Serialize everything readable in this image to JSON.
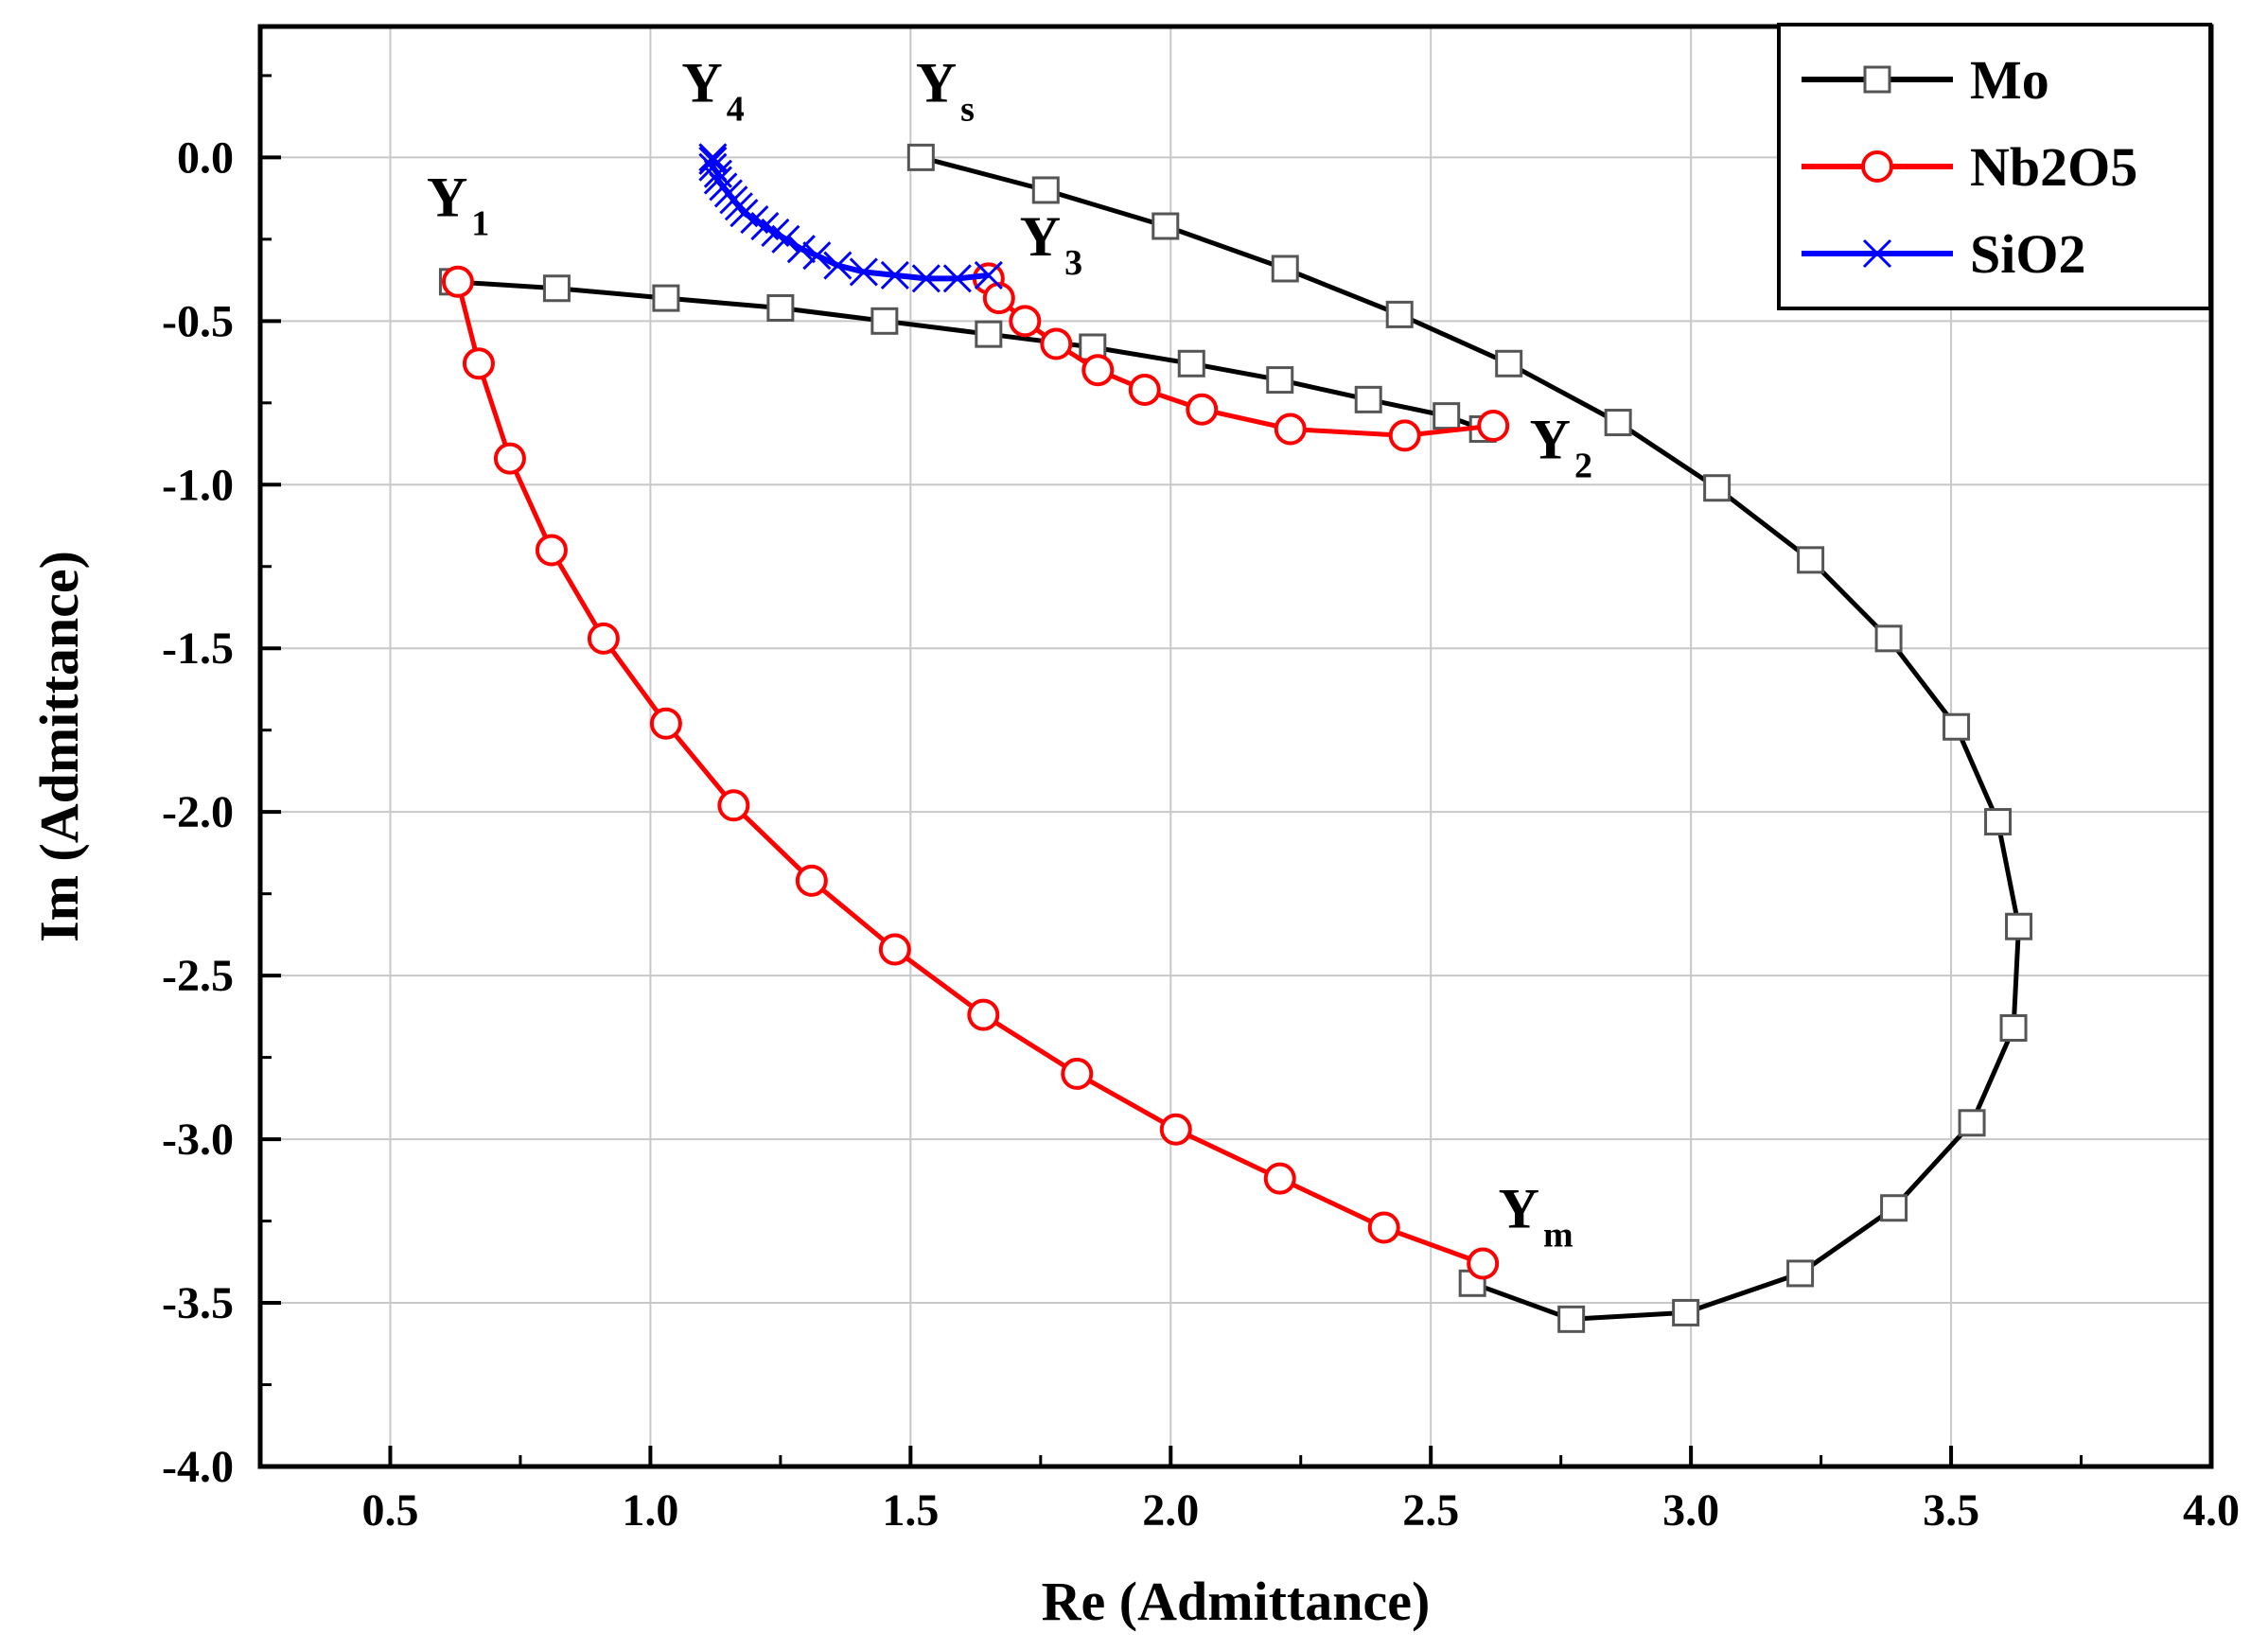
{
  "chart_data": {
    "type": "line",
    "title": "",
    "xlabel": "Re (Admittance)",
    "ylabel": "Im (Admittance)",
    "xlim": [
      0.25,
      4.0
    ],
    "ylim": [
      -4.0,
      0.4
    ],
    "xticks": [
      0.5,
      1.0,
      1.5,
      2.0,
      2.5,
      3.0,
      3.5,
      4.0
    ],
    "xtick_labels": [
      "0.5",
      "1.0",
      "1.5",
      "2.0",
      "2.5",
      "3.0",
      "3.5",
      "4.0"
    ],
    "yticks": [
      0.0,
      -0.5,
      -1.0,
      -1.5,
      -2.0,
      -2.5,
      -3.0,
      -3.5,
      -4.0
    ],
    "ytick_labels": [
      "0.0",
      "-0.5",
      "-1.0",
      "-1.5",
      "-2.0",
      "-2.5",
      "-3.0",
      "-3.5",
      "-4.0"
    ],
    "grid": true,
    "legend_position": "top-right",
    "series": [
      {
        "name": "Mo",
        "color": "#000000",
        "marker": "square",
        "points": [
          [
            0.62,
            -0.38
          ],
          [
            0.82,
            -0.4
          ],
          [
            1.03,
            -0.43
          ],
          [
            1.25,
            -0.46
          ],
          [
            1.45,
            -0.5
          ],
          [
            1.65,
            -0.54
          ],
          [
            1.85,
            -0.58
          ],
          [
            2.04,
            -0.63
          ],
          [
            2.21,
            -0.68
          ],
          [
            2.38,
            -0.74
          ],
          [
            2.53,
            -0.79
          ],
          [
            2.6,
            -0.83
          ],
          null,
          [
            1.52,
            0.0
          ],
          [
            1.76,
            -0.1
          ],
          [
            1.99,
            -0.21
          ],
          [
            2.22,
            -0.34
          ],
          [
            2.44,
            -0.48
          ],
          [
            2.65,
            -0.63
          ],
          [
            2.86,
            -0.81
          ],
          [
            3.05,
            -1.01
          ],
          [
            3.23,
            -1.23
          ],
          [
            3.38,
            -1.47
          ],
          [
            3.51,
            -1.74
          ],
          [
            3.59,
            -2.03
          ],
          [
            3.63,
            -2.35
          ],
          [
            3.62,
            -2.66
          ],
          [
            3.54,
            -2.95
          ],
          [
            3.39,
            -3.21
          ],
          [
            3.21,
            -3.41
          ],
          [
            2.99,
            -3.53
          ],
          [
            2.77,
            -3.55
          ],
          [
            2.58,
            -3.44
          ]
        ]
      },
      {
        "name": "Nb2O5",
        "color": "#ff0000",
        "marker": "circle",
        "points": [
          [
            2.6,
            -3.38
          ],
          [
            2.41,
            -3.27
          ],
          [
            2.21,
            -3.12
          ],
          [
            2.01,
            -2.97
          ],
          [
            1.82,
            -2.8
          ],
          [
            1.64,
            -2.62
          ],
          [
            1.47,
            -2.42
          ],
          [
            1.31,
            -2.21
          ],
          [
            1.16,
            -1.98
          ],
          [
            1.03,
            -1.73
          ],
          [
            0.91,
            -1.47
          ],
          [
            0.81,
            -1.2
          ],
          [
            0.73,
            -0.92
          ],
          [
            0.67,
            -0.63
          ],
          [
            0.63,
            -0.38
          ],
          null,
          [
            1.65,
            -0.37
          ],
          [
            1.67,
            -0.43
          ],
          [
            1.72,
            -0.5
          ],
          [
            1.78,
            -0.57
          ],
          [
            1.86,
            -0.65
          ],
          [
            1.95,
            -0.71
          ],
          [
            2.06,
            -0.77
          ],
          [
            2.23,
            -0.83
          ],
          [
            2.45,
            -0.85
          ],
          [
            2.62,
            -0.82
          ]
        ]
      },
      {
        "name": "SiO2",
        "color": "#0000ff",
        "marker": "x",
        "points": [
          [
            1.12,
            0.0
          ],
          [
            1.12,
            -0.01
          ],
          [
            1.12,
            -0.03
          ],
          [
            1.13,
            -0.05
          ],
          [
            1.13,
            -0.07
          ],
          [
            1.14,
            -0.09
          ],
          [
            1.15,
            -0.11
          ],
          [
            1.16,
            -0.13
          ],
          [
            1.17,
            -0.15
          ],
          [
            1.18,
            -0.17
          ],
          [
            1.2,
            -0.19
          ],
          [
            1.22,
            -0.21
          ],
          [
            1.24,
            -0.23
          ],
          [
            1.26,
            -0.25
          ],
          [
            1.29,
            -0.28
          ],
          [
            1.32,
            -0.3
          ],
          [
            1.36,
            -0.33
          ],
          [
            1.41,
            -0.35
          ],
          [
            1.47,
            -0.36
          ],
          [
            1.53,
            -0.37
          ],
          [
            1.59,
            -0.37
          ],
          [
            1.65,
            -0.36
          ]
        ]
      }
    ],
    "annotations": [
      {
        "main": "Y",
        "sub": "s",
        "x": 1.51,
        "y": 0.17
      },
      {
        "main": "Y",
        "sub": "4",
        "x": 1.06,
        "y": 0.17
      },
      {
        "main": "Y",
        "sub": "1",
        "x": 0.57,
        "y": -0.18
      },
      {
        "main": "Y",
        "sub": "3",
        "x": 1.71,
        "y": -0.3
      },
      {
        "main": "Y",
        "sub": "2",
        "x": 2.69,
        "y": -0.92
      },
      {
        "main": "Y",
        "sub": "m",
        "x": 2.63,
        "y": -3.27
      }
    ]
  }
}
